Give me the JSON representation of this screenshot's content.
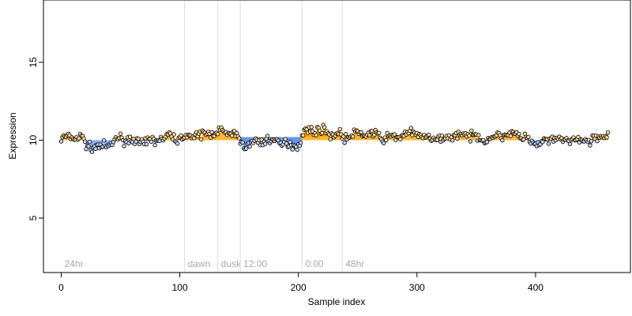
{
  "chart_data": {
    "type": "scatter",
    "title": "",
    "xlabel": "Sample index",
    "ylabel": "Expression",
    "xlim": [
      -15,
      480
    ],
    "ylim": [
      1.5,
      19
    ],
    "xticks": [
      0,
      100,
      200,
      300,
      400
    ],
    "yticks": [
      5,
      10,
      15
    ],
    "baseline": 10,
    "grid": false,
    "legend": "none",
    "colors": {
      "above_baseline": "#ffa500",
      "below_baseline": "#6495ed",
      "point_stroke": "#000000",
      "marker_line": "#dddddd",
      "marker_text": "#aaaaaa",
      "highlight_fill": "#6495ed",
      "highlight_fill2": "#ffa500"
    },
    "markers": [
      {
        "x": 0,
        "label": "24hr"
      },
      {
        "x": 104,
        "label": "dawn"
      },
      {
        "x": 132,
        "label": "dusk"
      },
      {
        "x": 151,
        "label": "12:00"
      },
      {
        "x": 203,
        "label": "0:00"
      },
      {
        "x": 237,
        "label": "48hr"
      }
    ],
    "highlight_bands": [
      {
        "x_start": 151,
        "x_end": 203,
        "value": 10.2,
        "color": "below"
      },
      {
        "x_start": 203,
        "x_end": 237,
        "value": 10.2,
        "color": "above"
      }
    ],
    "n_points": 462,
    "segment_means": [
      {
        "x_start": 0,
        "x_end": 20,
        "mean": 10.05
      },
      {
        "x_start": 20,
        "x_end": 45,
        "mean": 9.7
      },
      {
        "x_start": 45,
        "x_end": 70,
        "mean": 9.95
      },
      {
        "x_start": 70,
        "x_end": 104,
        "mean": 10.05
      },
      {
        "x_start": 104,
        "x_end": 151,
        "mean": 10.4
      },
      {
        "x_start": 151,
        "x_end": 203,
        "mean": 9.85
      },
      {
        "x_start": 203,
        "x_end": 237,
        "mean": 10.5
      },
      {
        "x_start": 237,
        "x_end": 300,
        "mean": 10.3
      },
      {
        "x_start": 300,
        "x_end": 345,
        "mean": 10.2
      },
      {
        "x_start": 345,
        "x_end": 395,
        "mean": 10.25
      },
      {
        "x_start": 395,
        "x_end": 430,
        "mean": 9.9
      },
      {
        "x_start": 430,
        "x_end": 462,
        "mean": 10.1
      }
    ]
  }
}
